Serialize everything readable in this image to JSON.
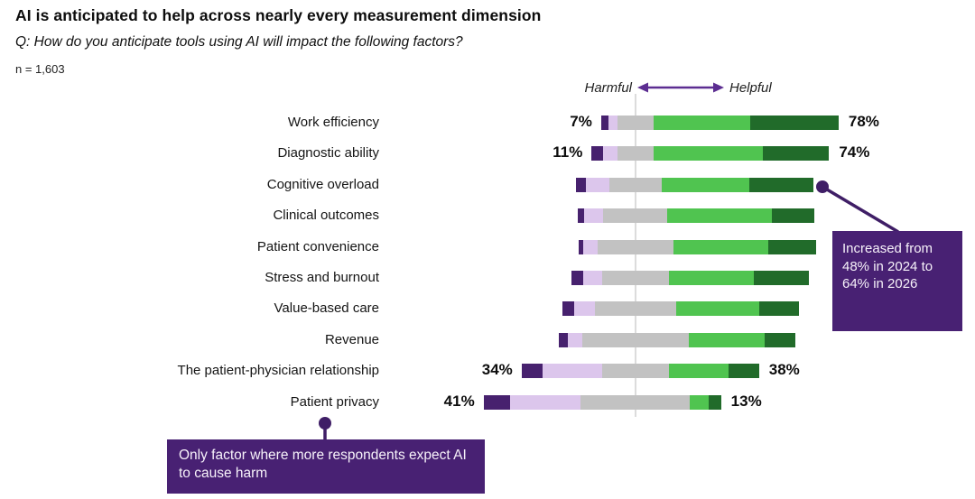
{
  "header": {
    "title": "AI is anticipated to help across nearly every measurement dimension",
    "subtitle": "Q: How do you anticipate tools using AI will impact the following factors?",
    "sample_size": "n = 1,603"
  },
  "legend": {
    "harmful_label": "Harmful",
    "helpful_label": "Helpful"
  },
  "colors": {
    "very_harmful": "#47216E",
    "somewhat_harmful": "#DCC6EC",
    "neutral": "#C2C2C2",
    "somewhat_helpful": "#50C450",
    "very_helpful": "#216B2A",
    "callout_bg": "#482173",
    "annotation_line": "#3F1E66",
    "arrow": "#5C2D91",
    "divider": "#DCDCDC"
  },
  "chart_data": {
    "type": "bar",
    "subtype": "diverging-stacked-horizontal",
    "title": "AI is anticipated to help across nearly every measurement dimension",
    "axis_note": "Harmful (left) vs Helpful (right); neutral segment centered on divider",
    "units": "percent of respondents",
    "segments_order": [
      "very_harmful",
      "somewhat_harmful",
      "neutral",
      "somewhat_helpful",
      "very_helpful"
    ],
    "categories": [
      "Work efficiency",
      "Diagnostic ability",
      "Cognitive overload",
      "Clinical outcomes",
      "Patient convenience",
      "Stress and burnout",
      "Value-based care",
      "Revenue",
      "The patient-physician relationship",
      "Patient privacy"
    ],
    "series": [
      {
        "category": "Work efficiency",
        "very_harmful": 3,
        "somewhat_harmful": 4,
        "neutral": 15,
        "somewhat_helpful": 41,
        "very_helpful": 37,
        "harmful_label": "7%",
        "helpful_label": "78%"
      },
      {
        "category": "Diagnostic ability",
        "very_harmful": 5,
        "somewhat_harmful": 6,
        "neutral": 15,
        "somewhat_helpful": 46,
        "very_helpful": 28,
        "harmful_label": "11%",
        "helpful_label": "74%"
      },
      {
        "category": "Cognitive overload",
        "very_harmful": 4,
        "somewhat_harmful": 10,
        "neutral": 22,
        "somewhat_helpful": 37,
        "very_helpful": 27,
        "harmful_label": "",
        "helpful_label": ""
      },
      {
        "category": "Clinical outcomes",
        "very_harmful": 3,
        "somewhat_harmful": 8,
        "neutral": 27,
        "somewhat_helpful": 44,
        "very_helpful": 18,
        "harmful_label": "",
        "helpful_label": ""
      },
      {
        "category": "Patient convenience",
        "very_harmful": 2,
        "somewhat_harmful": 6,
        "neutral": 32,
        "somewhat_helpful": 40,
        "very_helpful": 20,
        "harmful_label": "",
        "helpful_label": ""
      },
      {
        "category": "Stress and burnout",
        "very_harmful": 5,
        "somewhat_harmful": 8,
        "neutral": 28,
        "somewhat_helpful": 36,
        "very_helpful": 23,
        "harmful_label": "",
        "helpful_label": ""
      },
      {
        "category": "Value-based care",
        "very_harmful": 5,
        "somewhat_harmful": 9,
        "neutral": 34,
        "somewhat_helpful": 35,
        "very_helpful": 17,
        "harmful_label": "",
        "helpful_label": ""
      },
      {
        "category": "Revenue",
        "very_harmful": 4,
        "somewhat_harmful": 6,
        "neutral": 45,
        "somewhat_helpful": 32,
        "very_helpful": 13,
        "harmful_label": "",
        "helpful_label": ""
      },
      {
        "category": "The patient-physician relationship",
        "very_harmful": 9,
        "somewhat_harmful": 25,
        "neutral": 28,
        "somewhat_helpful": 25,
        "very_helpful": 13,
        "harmful_label": "34%",
        "helpful_label": "38%"
      },
      {
        "category": "Patient privacy",
        "very_harmful": 11,
        "somewhat_harmful": 30,
        "neutral": 46,
        "somewhat_helpful": 8,
        "very_helpful": 5,
        "harmful_label": "41%",
        "helpful_label": "13%"
      }
    ]
  },
  "callouts": [
    {
      "text": "Increased from 48% in 2024 to 64% in 2026",
      "target": "Cognitive overload helpful total"
    },
    {
      "text": "Only factor where more respondents expect AI to cause harm",
      "target": "Patient privacy"
    }
  ]
}
